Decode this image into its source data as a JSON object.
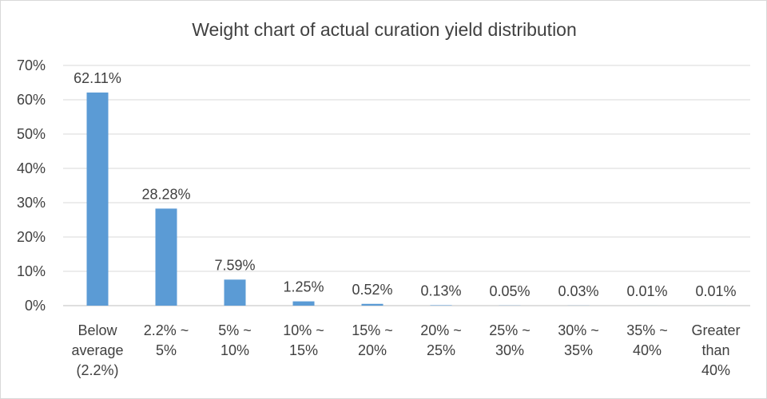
{
  "chart_data": {
    "type": "bar",
    "title": "Weight chart of actual curation yield distribution",
    "xlabel": "",
    "ylabel": "",
    "categories": [
      [
        "Below",
        "average",
        "(2.2%)"
      ],
      [
        "2.2% ~",
        "5%"
      ],
      [
        "5% ~",
        "10%"
      ],
      [
        "10% ~",
        "15%"
      ],
      [
        "15% ~",
        "20%"
      ],
      [
        "20% ~",
        "25%"
      ],
      [
        "25% ~",
        "30%"
      ],
      [
        "30% ~",
        "35%"
      ],
      [
        "35% ~",
        "40%"
      ],
      [
        "Greater",
        "than",
        "40%"
      ]
    ],
    "values": [
      62.11,
      28.28,
      7.59,
      1.25,
      0.52,
      0.13,
      0.05,
      0.03,
      0.01,
      0.01
    ],
    "data_labels": [
      "62.11%",
      "28.28%",
      "7.59%",
      "1.25%",
      "0.52%",
      "0.13%",
      "0.05%",
      "0.03%",
      "0.01%",
      "0.01%"
    ],
    "ylim": [
      0,
      70
    ],
    "yticks": [
      "0%",
      "10%",
      "20%",
      "30%",
      "40%",
      "50%",
      "60%",
      "70%"
    ],
    "grid": true,
    "legend": "none",
    "bar_color": "#5b9bd5"
  }
}
